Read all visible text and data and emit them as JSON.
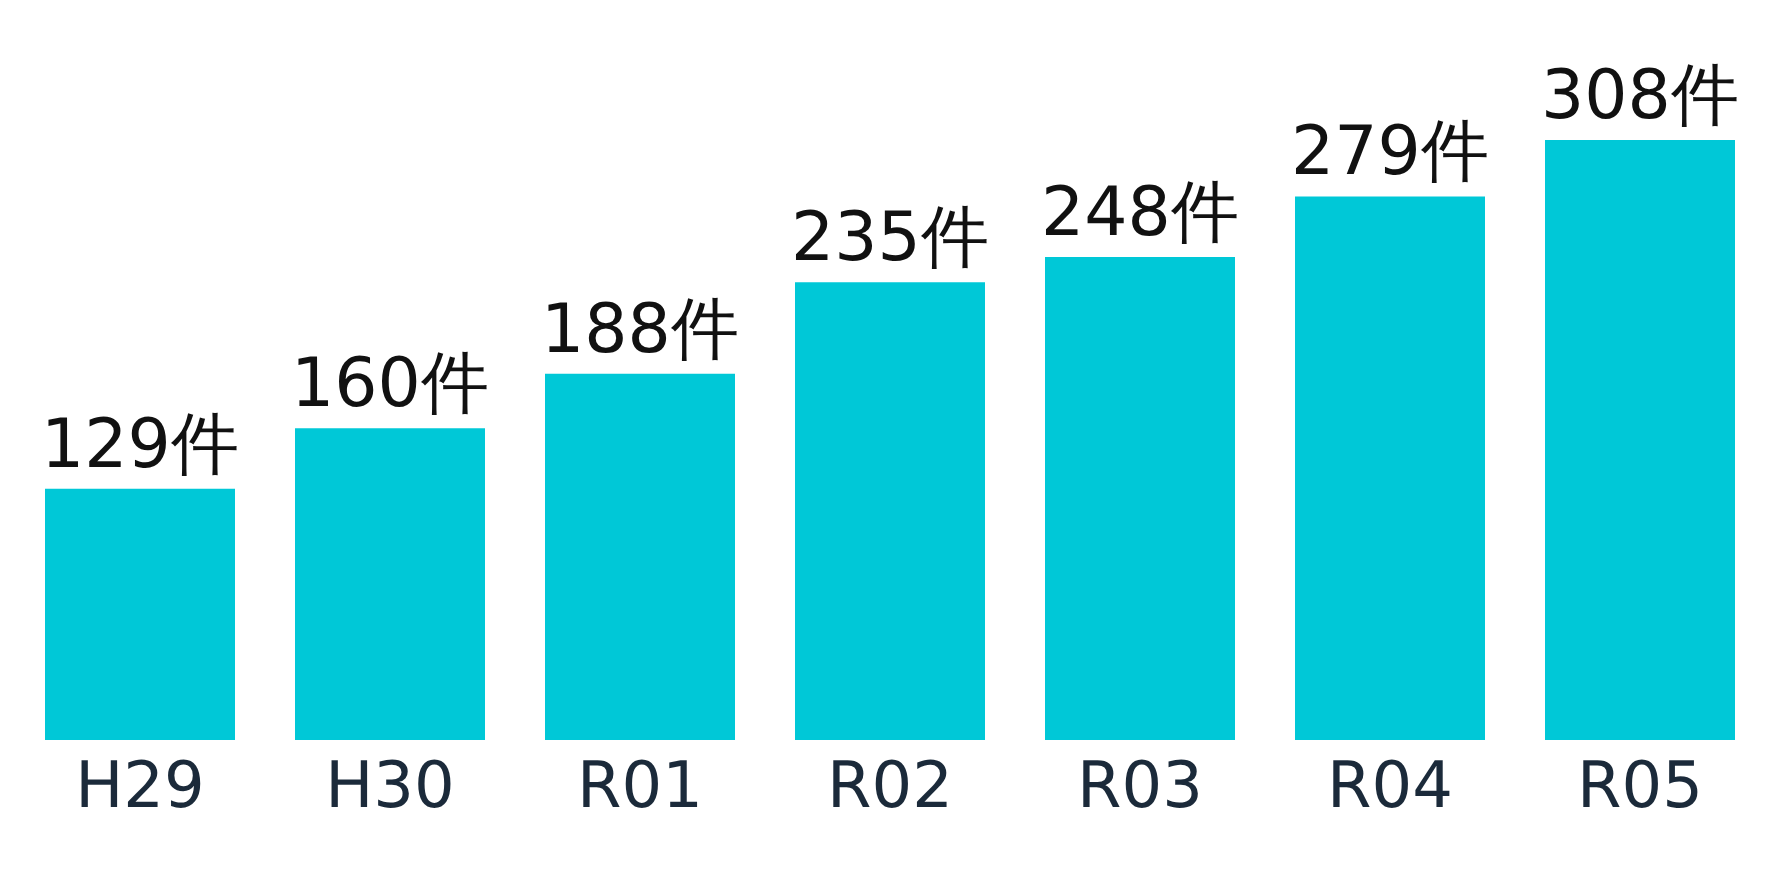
{
  "chart_data": {
    "type": "bar",
    "categories": [
      "H29",
      "H30",
      "R01",
      "R02",
      "R03",
      "R04",
      "R05"
    ],
    "values": [
      129,
      160,
      188,
      235,
      248,
      279,
      308
    ],
    "value_labels": [
      "129件",
      "160件",
      "188件",
      "235件",
      "248件",
      "279件",
      "308件"
    ],
    "color": "#00c8d7"
  }
}
